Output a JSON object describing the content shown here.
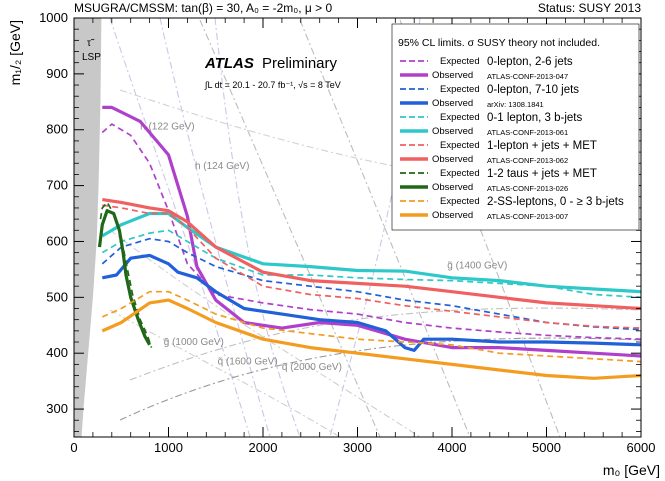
{
  "header": {
    "left": "MSUGRA/CMSSM: tan(β) = 30, A₀ = -2m₀, μ > 0",
    "right": "Status: SUSY 2013"
  },
  "atlas": {
    "brand": "ATLAS",
    "label": "Preliminary",
    "lumi": "∫L dt = 20.1 - 20.7 fb⁻¹, √s = 8 TeV"
  },
  "lsp_label": "τ̃\nLSP",
  "legend": {
    "title": "95% CL limits. σ SUSY theory not included.",
    "entries": [
      {
        "expected": "Expected",
        "observed": "Observed",
        "analysis": "0-lepton, 2-6 jets",
        "ref": "ATLAS-CONF-2013-047",
        "color": "#b040cc"
      },
      {
        "expected": "Expected",
        "observed": "Observed",
        "analysis": "0-lepton, 7-10 jets",
        "ref": "arXiv: 1308.1841",
        "color": "#2060d8"
      },
      {
        "expected": "Expected",
        "observed": "Observed",
        "analysis": "0-1 lepton, 3 b-jets",
        "ref": "ATLAS-CONF-2013-061",
        "color": "#2ec8c8"
      },
      {
        "expected": "Expected",
        "observed": "Observed",
        "analysis": "1-lepton + jets + MET",
        "ref": "ATLAS-CONF-2013-062",
        "color": "#f06060"
      },
      {
        "expected": "Expected",
        "observed": "Observed",
        "analysis": "1-2 taus + jets + MET",
        "ref": "ATLAS-CONF-2013-026",
        "color": "#206818"
      },
      {
        "expected": "Expected",
        "observed": "Observed",
        "analysis": "2-SS-leptons, 0 - ≥ 3 b-jets",
        "ref": "ATLAS-CONF-2013-007",
        "color": "#f49c20"
      }
    ]
  },
  "chart_data": {
    "type": "line",
    "xlabel": "m₀ [GeV]",
    "ylabel": "m₁/₂ [GeV]",
    "xlim": [
      0,
      6000
    ],
    "ylim": [
      250,
      1000
    ],
    "xticks": [
      0,
      1000,
      2000,
      3000,
      4000,
      5000,
      6000
    ],
    "yticks": [
      300,
      400,
      500,
      600,
      700,
      800,
      900,
      1000
    ],
    "contour_labels": [
      {
        "text": "h (122 GeV)",
        "x": 700,
        "y": 800
      },
      {
        "text": "h (124 GeV)",
        "x": 1280,
        "y": 730
      },
      {
        "text": "h (126 GeV)",
        "x": 4700,
        "y": 880
      },
      {
        "text": "g̃ (1000 GeV)",
        "x": 950,
        "y": 415
      },
      {
        "text": "q̃ (1600 GeV)",
        "x": 1520,
        "y": 380
      },
      {
        "text": "q̃ (2000 GeV)",
        "x": 2200,
        "y": 370
      },
      {
        "text": "g̃ (1400 GeV)",
        "x": 3950,
        "y": 552
      }
    ],
    "series": [
      {
        "name": "0-lepton, 2-6 jets (Expected)",
        "color": "#b040cc",
        "style": "dashed",
        "x": [
          300,
          400,
          600,
          800,
          1000,
          1200,
          1500,
          2000,
          2500,
          3000,
          3500,
          4000,
          4500,
          5000,
          5500,
          6000
        ],
        "y": [
          795,
          810,
          790,
          740,
          655,
          560,
          505,
          490,
          478,
          470,
          455,
          445,
          438,
          432,
          428,
          425
        ]
      },
      {
        "name": "0-lepton, 2-6 jets (Observed)",
        "color": "#b040cc",
        "style": "solid",
        "x": [
          300,
          400,
          700,
          1000,
          1200,
          1300,
          1500,
          1800,
          2200,
          2600,
          3000,
          3500,
          4000,
          4500,
          5000,
          5500,
          6000
        ],
        "y": [
          840,
          840,
          815,
          755,
          645,
          555,
          495,
          455,
          445,
          455,
          450,
          425,
          410,
          410,
          405,
          400,
          395
        ]
      },
      {
        "name": "0-lepton, 7-10 jets (Expected)",
        "color": "#2060d8",
        "style": "dashed",
        "x": [
          300,
          500,
          800,
          1000,
          1200,
          1500,
          2000,
          2500,
          3000,
          3500,
          4000,
          4500,
          5000,
          5500,
          6000
        ],
        "y": [
          560,
          590,
          605,
          600,
          580,
          555,
          530,
          520,
          510,
          495,
          485,
          470,
          455,
          447,
          442
        ]
      },
      {
        "name": "0-lepton, 7-10 jets (Observed)",
        "color": "#2060d8",
        "style": "solid",
        "x": [
          300,
          450,
          600,
          800,
          1000,
          1100,
          1300,
          1500,
          1800,
          2200,
          2600,
          3000,
          3300,
          3500,
          3600,
          3700,
          4000,
          4500,
          5000,
          5500,
          6000
        ],
        "y": [
          535,
          540,
          570,
          575,
          560,
          545,
          535,
          510,
          480,
          470,
          460,
          455,
          440,
          410,
          405,
          425,
          425,
          420,
          420,
          418,
          415
        ]
      },
      {
        "name": "0-1 lepton, 3 b-jets (Expected)",
        "color": "#2ec8c8",
        "style": "dashed",
        "x": [
          300,
          500,
          800,
          1000,
          1200,
          1500,
          2000,
          2500,
          3000,
          3500,
          4000,
          4500,
          5000,
          5500,
          6000
        ],
        "y": [
          580,
          600,
          615,
          620,
          600,
          570,
          540,
          540,
          535,
          532,
          530,
          525,
          520,
          505,
          500
        ]
      },
      {
        "name": "0-1 lepton, 3 b-jets (Observed)",
        "color": "#2ec8c8",
        "style": "solid",
        "x": [
          300,
          500,
          800,
          1000,
          1200,
          1500,
          2000,
          2500,
          3000,
          3500,
          4000,
          4500,
          5000,
          5500,
          6000
        ],
        "y": [
          610,
          630,
          650,
          650,
          625,
          590,
          560,
          555,
          548,
          547,
          535,
          530,
          520,
          515,
          510
        ]
      },
      {
        "name": "1-lepton + jets + MET (Expected)",
        "color": "#f06060",
        "style": "dashed",
        "x": [
          300,
          500,
          800,
          1000,
          1200,
          1500,
          2000,
          2500,
          3000,
          3500,
          4000,
          4500,
          5000,
          5500,
          6000
        ],
        "y": [
          665,
          660,
          650,
          650,
          625,
          570,
          520,
          505,
          498,
          485,
          475,
          465,
          455,
          448,
          445
        ]
      },
      {
        "name": "1-lepton + jets + MET (Observed)",
        "color": "#f06060",
        "style": "solid",
        "x": [
          300,
          500,
          800,
          1000,
          1200,
          1500,
          2000,
          2500,
          3000,
          3500,
          4000,
          4500,
          5000,
          5500,
          6000
        ],
        "y": [
          675,
          670,
          660,
          655,
          635,
          590,
          545,
          530,
          525,
          520,
          510,
          500,
          490,
          485,
          480
        ]
      },
      {
        "name": "1-2 taus + jets + MET (Expected)",
        "color": "#206818",
        "style": "dashed",
        "x": [
          280,
          300,
          350,
          420,
          480,
          520,
          560,
          620,
          700,
          780,
          820
        ],
        "y": [
          640,
          660,
          670,
          650,
          620,
          590,
          555,
          505,
          460,
          430,
          410
        ]
      },
      {
        "name": "1-2 taus + jets + MET (Observed)",
        "color": "#206818",
        "style": "solid",
        "x": [
          270,
          300,
          350,
          420,
          480,
          520,
          550,
          600,
          680,
          750,
          800
        ],
        "y": [
          590,
          630,
          655,
          650,
          620,
          580,
          540,
          500,
          460,
          430,
          415
        ]
      },
      {
        "name": "2-SS-leptons, 0 - ≥ 3 b-jets (Expected)",
        "color": "#f49c20",
        "style": "dashed",
        "x": [
          300,
          500,
          800,
          1000,
          1200,
          1500,
          2000,
          2500,
          3000,
          3500,
          4000,
          4500,
          5000,
          5500,
          6000
        ],
        "y": [
          465,
          480,
          510,
          510,
          495,
          470,
          445,
          435,
          425,
          420,
          415,
          400,
          395,
          390,
          385
        ]
      },
      {
        "name": "2-SS-leptons, 0 - ≥ 3 b-jets (Observed)",
        "color": "#f49c20",
        "style": "solid",
        "x": [
          300,
          500,
          800,
          1000,
          1200,
          1500,
          2000,
          2500,
          3000,
          3500,
          4000,
          4500,
          5000,
          5500,
          6000
        ],
        "y": [
          440,
          455,
          490,
          495,
          480,
          455,
          425,
          410,
          400,
          390,
          380,
          370,
          360,
          355,
          360
        ]
      }
    ]
  }
}
